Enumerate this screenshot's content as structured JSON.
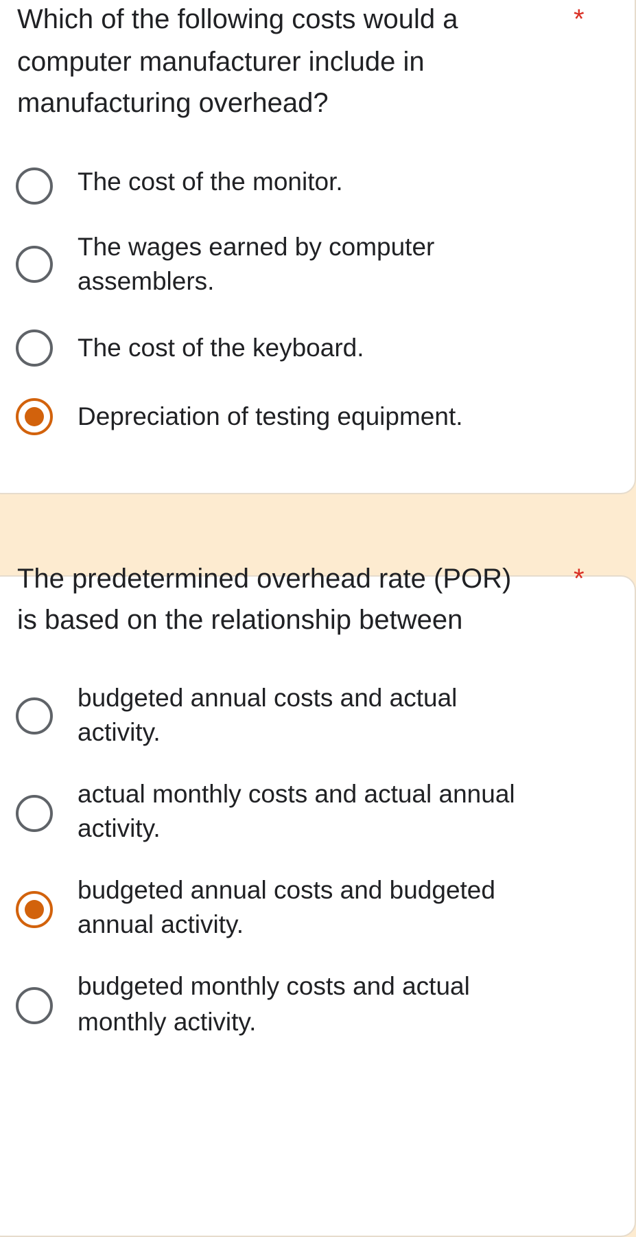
{
  "accent_color": "#d2620c",
  "required_mark": "*",
  "questions": [
    {
      "lines": [
        "Which of the following costs would a",
        "computer manufacturer include in",
        "manufacturing overhead?"
      ],
      "options": [
        {
          "lines": [
            "The cost of the monitor."
          ],
          "selected": false
        },
        {
          "lines": [
            "The wages earned by computer",
            "assemblers."
          ],
          "selected": false
        },
        {
          "lines": [
            "The cost of the keyboard."
          ],
          "selected": false
        },
        {
          "lines": [
            "Depreciation of testing equipment."
          ],
          "selected": true
        }
      ]
    },
    {
      "lines": [
        "The predetermined overhead rate (POR)",
        "is based on the relationship between"
      ],
      "options": [
        {
          "lines": [
            "budgeted annual costs and actual",
            "activity."
          ],
          "selected": false
        },
        {
          "lines": [
            "actual monthly costs and actual annual",
            "activity."
          ],
          "selected": false
        },
        {
          "lines": [
            "budgeted annual costs and budgeted",
            "annual activity."
          ],
          "selected": true
        },
        {
          "lines": [
            "budgeted monthly costs and actual",
            "monthly activity."
          ],
          "selected": false
        }
      ]
    }
  ]
}
